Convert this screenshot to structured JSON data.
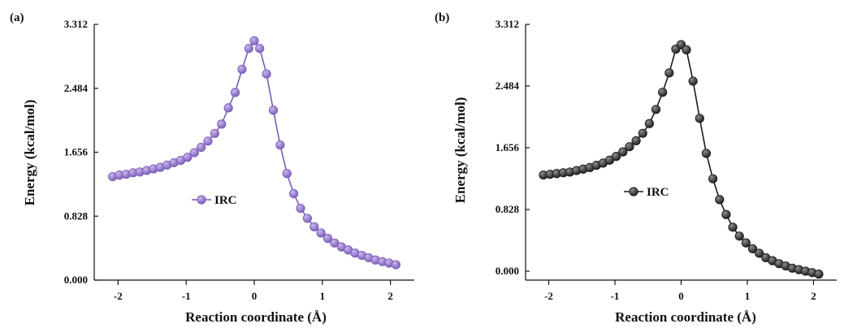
{
  "chart_data": [
    {
      "type": "line",
      "panel_label": "(a)",
      "xlabel": "Reaction coordinate (Å)",
      "ylabel": "Energy (kcal/mol)",
      "xlim": [
        -2.35,
        2.35
      ],
      "ylim": [
        0.0,
        3.312
      ],
      "xticks": [
        -2,
        -1,
        0,
        1,
        2
      ],
      "yticks": [
        0.0,
        0.828,
        1.656,
        2.484,
        3.312
      ],
      "ytick_labels": [
        "0.000",
        "0.828",
        "1.656",
        "2.484",
        "3.312"
      ],
      "xtick_labels": [
        "-2",
        "-1",
        "0",
        "1",
        "2"
      ],
      "grid": false,
      "legend_position": "center-left",
      "series": [
        {
          "name": "IRC",
          "color": "#7b5cb8",
          "marker_highlight": "#c9b8ec",
          "x": [
            -2.08,
            -1.98,
            -1.88,
            -1.78,
            -1.68,
            -1.58,
            -1.48,
            -1.38,
            -1.28,
            -1.18,
            -1.08,
            -0.98,
            -0.88,
            -0.78,
            -0.68,
            -0.58,
            -0.48,
            -0.38,
            -0.28,
            -0.18,
            -0.08,
            0.0,
            0.08,
            0.18,
            0.28,
            0.38,
            0.48,
            0.58,
            0.68,
            0.78,
            0.88,
            0.98,
            1.08,
            1.18,
            1.28,
            1.38,
            1.48,
            1.58,
            1.68,
            1.78,
            1.88,
            1.98,
            2.08
          ],
          "y": [
            1.34,
            1.36,
            1.37,
            1.39,
            1.4,
            1.42,
            1.44,
            1.46,
            1.49,
            1.52,
            1.55,
            1.59,
            1.65,
            1.72,
            1.8,
            1.9,
            2.02,
            2.23,
            2.43,
            2.73,
            3.0,
            3.1,
            3.0,
            2.67,
            2.2,
            1.75,
            1.38,
            1.12,
            0.93,
            0.8,
            0.69,
            0.61,
            0.54,
            0.48,
            0.43,
            0.39,
            0.35,
            0.32,
            0.29,
            0.26,
            0.24,
            0.22,
            0.2
          ]
        }
      ]
    },
    {
      "type": "line",
      "panel_label": "(b)",
      "xlabel": "Reaction coordinate (Å)",
      "ylabel": "Energy (kcal/mol)",
      "xlim": [
        -2.35,
        2.35
      ],
      "ylim": [
        -0.12,
        3.312
      ],
      "xticks": [
        -2,
        -1,
        0,
        1,
        2
      ],
      "yticks": [
        0.0,
        0.828,
        1.656,
        2.484,
        3.312
      ],
      "ytick_labels": [
        "0.000",
        "0.828",
        "1.656",
        "2.484",
        "3.312"
      ],
      "xtick_labels": [
        "-2",
        "-1",
        "0",
        "1",
        "2"
      ],
      "grid": false,
      "legend_position": "center",
      "series": [
        {
          "name": "IRC",
          "color": "#1a1a1a",
          "marker_highlight": "#8c8c8c",
          "x": [
            -2.08,
            -1.98,
            -1.88,
            -1.78,
            -1.68,
            -1.58,
            -1.48,
            -1.38,
            -1.28,
            -1.18,
            -1.08,
            -0.98,
            -0.88,
            -0.78,
            -0.68,
            -0.58,
            -0.48,
            -0.38,
            -0.28,
            -0.18,
            -0.08,
            0.0,
            0.08,
            0.18,
            0.28,
            0.38,
            0.48,
            0.58,
            0.68,
            0.78,
            0.88,
            0.98,
            1.08,
            1.18,
            1.28,
            1.38,
            1.48,
            1.58,
            1.68,
            1.78,
            1.88,
            1.98,
            2.08
          ],
          "y": [
            1.29,
            1.3,
            1.31,
            1.32,
            1.33,
            1.35,
            1.37,
            1.39,
            1.42,
            1.45,
            1.49,
            1.54,
            1.6,
            1.67,
            1.75,
            1.85,
            1.98,
            2.17,
            2.4,
            2.66,
            2.98,
            3.04,
            2.97,
            2.55,
            2.05,
            1.58,
            1.24,
            0.96,
            0.76,
            0.59,
            0.47,
            0.38,
            0.3,
            0.24,
            0.18,
            0.14,
            0.1,
            0.07,
            0.04,
            0.02,
            0.0,
            -0.02,
            -0.04
          ]
        }
      ]
    }
  ]
}
